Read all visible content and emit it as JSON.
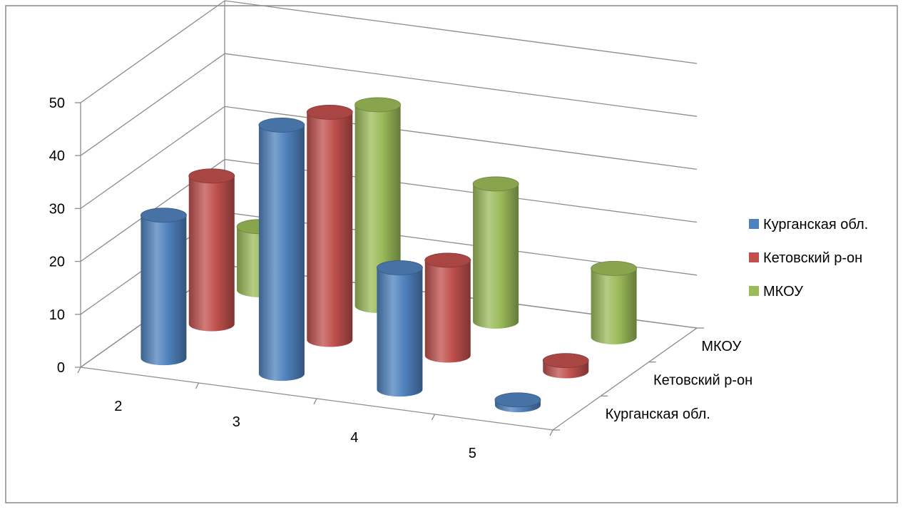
{
  "chart_data": {
    "type": "bar",
    "subtype": "3d-cylinder",
    "title": "",
    "xlabel": "",
    "ylabel": "",
    "categories": [
      "2",
      "3",
      "4",
      "5"
    ],
    "depth_categories": [
      "Курганская обл.",
      "Кетовский р-он",
      "МКОУ"
    ],
    "ylim": [
      0,
      50
    ],
    "yticks": [
      "0",
      "10",
      "20",
      "30",
      "40",
      "50"
    ],
    "grid": true,
    "legend_position": "right",
    "series": [
      {
        "name": "Курганская обл.",
        "color": "#4F81BD",
        "values": [
          27,
          47,
          23,
          1
        ]
      },
      {
        "name": "Кетовский р-он",
        "color": "#C0504D",
        "values": [
          28,
          43,
          18,
          2
        ]
      },
      {
        "name": "МКОУ",
        "color": "#9BBB59",
        "values": [
          12,
          38,
          26,
          13
        ]
      }
    ]
  }
}
